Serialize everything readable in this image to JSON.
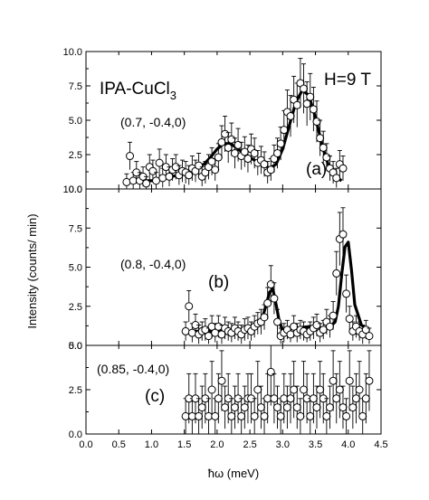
{
  "chart_data": {
    "type": "scatter",
    "xlabel": "ħω (meV)",
    "ylabel": "Intensity (counts/ min)",
    "xlim": [
      0.0,
      4.5
    ],
    "xticks": [
      "0.0",
      "0.5",
      "1.0",
      "1.5",
      "2.0",
      "2.5",
      "3.0",
      "3.5",
      "4.0",
      "4.5"
    ],
    "annotations": {
      "sample": "IPA-CuCl",
      "sample_sub": "3",
      "field": "H=9 T"
    },
    "panels": [
      {
        "label": "(a)",
        "q": "(0.7, -0.4,0)",
        "ylim": [
          0,
          10
        ],
        "yticks": [
          "0.0",
          "2.5",
          "5.0",
          "7.5",
          "10.0"
        ],
        "x": [
          0.62,
          0.67,
          0.72,
          0.77,
          0.82,
          0.87,
          0.92,
          0.97,
          1.02,
          1.07,
          1.12,
          1.17,
          1.22,
          1.27,
          1.32,
          1.37,
          1.42,
          1.47,
          1.52,
          1.57,
          1.62,
          1.67,
          1.72,
          1.77,
          1.82,
          1.87,
          1.92,
          1.97,
          2.02,
          2.07,
          2.12,
          2.17,
          2.22,
          2.27,
          2.32,
          2.37,
          2.42,
          2.47,
          2.52,
          2.57,
          2.62,
          2.67,
          2.72,
          2.77,
          2.82,
          2.87,
          2.92,
          2.97,
          3.02,
          3.07,
          3.12,
          3.17,
          3.22,
          3.27,
          3.32,
          3.37,
          3.42,
          3.47,
          3.52,
          3.57,
          3.62,
          3.67,
          3.72,
          3.77,
          3.82,
          3.87,
          3.92
        ],
        "y": [
          0.5,
          2.4,
          0.6,
          1.2,
          0.6,
          0.9,
          0.4,
          1.6,
          1.3,
          0.6,
          1.9,
          0.8,
          1.6,
          0.9,
          1.4,
          1.6,
          1.0,
          1.3,
          1.2,
          1.0,
          1.5,
          1.3,
          1.7,
          0.9,
          1.2,
          1.6,
          2.0,
          1.4,
          2.3,
          3.4,
          4.0,
          3.0,
          3.6,
          2.6,
          3.2,
          2.4,
          2.7,
          2.2,
          2.9,
          2.6,
          1.9,
          2.1,
          1.8,
          1.2,
          1.4,
          2.2,
          2.6,
          3.3,
          4.3,
          5.6,
          5.3,
          6.5,
          6.1,
          7.7,
          7.3,
          6.2,
          6.7,
          5.8,
          4.9,
          3.7,
          3.0,
          2.3,
          1.5,
          1.2,
          0.8,
          1.8,
          1.5
        ],
        "err": [
          0.6,
          1.0,
          0.6,
          0.8,
          0.6,
          0.7,
          0.5,
          0.9,
          0.8,
          0.6,
          1.0,
          0.7,
          0.9,
          0.7,
          0.8,
          0.9,
          0.7,
          0.8,
          0.8,
          0.7,
          0.9,
          0.8,
          0.9,
          0.7,
          0.8,
          0.9,
          1.0,
          0.8,
          1.0,
          1.2,
          1.3,
          1.1,
          1.2,
          1.1,
          1.2,
          1.0,
          1.1,
          1.0,
          1.1,
          1.1,
          0.9,
          1.0,
          0.9,
          0.8,
          0.8,
          1.0,
          1.1,
          1.2,
          1.4,
          1.6,
          1.5,
          1.7,
          1.6,
          1.8,
          1.8,
          1.6,
          1.7,
          1.6,
          1.5,
          1.3,
          1.2,
          1.0,
          0.9,
          0.8,
          0.7,
          1.0,
          0.9
        ],
        "fit_x": [
          0.8,
          1.0,
          1.2,
          1.4,
          1.6,
          1.8,
          1.9,
          2.0,
          2.1,
          2.2,
          2.3,
          2.4,
          2.5,
          2.6,
          2.7,
          2.8,
          2.9,
          3.0,
          3.1,
          3.2,
          3.3,
          3.4,
          3.5,
          3.6,
          3.7,
          3.8,
          3.9
        ],
        "fit_y": [
          0.6,
          0.6,
          0.8,
          1.0,
          1.3,
          1.8,
          2.3,
          2.9,
          3.3,
          3.3,
          3.0,
          2.6,
          2.3,
          2.0,
          1.8,
          1.5,
          1.8,
          2.9,
          4.6,
          6.3,
          7.2,
          6.8,
          5.2,
          3.2,
          1.7,
          0.9,
          0.6
        ]
      },
      {
        "label": "(b)",
        "q": "(0.8, -0.4,0)",
        "ylim": [
          0,
          10
        ],
        "yticks": [
          "0.0",
          "2.5",
          "5.0",
          "7.5",
          "10.0"
        ],
        "x": [
          1.52,
          1.57,
          1.62,
          1.67,
          1.72,
          1.77,
          1.82,
          1.87,
          1.92,
          1.97,
          2.02,
          2.07,
          2.12,
          2.17,
          2.22,
          2.27,
          2.32,
          2.37,
          2.42,
          2.47,
          2.52,
          2.57,
          2.62,
          2.67,
          2.72,
          2.77,
          2.82,
          2.87,
          2.92,
          2.97,
          3.02,
          3.07,
          3.12,
          3.17,
          3.22,
          3.27,
          3.32,
          3.37,
          3.42,
          3.47,
          3.52,
          3.57,
          3.62,
          3.67,
          3.72,
          3.77,
          3.82,
          3.87,
          3.92,
          3.97,
          4.02,
          4.07,
          4.12,
          4.17,
          4.22,
          4.27,
          4.32
        ],
        "y": [
          0.9,
          2.5,
          0.8,
          1.3,
          0.7,
          0.9,
          1.0,
          0.6,
          1.2,
          0.8,
          1.2,
          0.7,
          1.1,
          0.9,
          0.8,
          1.1,
          0.9,
          0.7,
          1.0,
          1.1,
          0.9,
          1.2,
          1.4,
          1.5,
          1.8,
          2.7,
          3.9,
          3.0,
          1.5,
          0.6,
          0.8,
          1.0,
          0.7,
          1.2,
          0.8,
          1.0,
          0.9,
          0.7,
          0.9,
          1.1,
          1.3,
          0.8,
          1.0,
          1.5,
          1.2,
          1.9,
          4.6,
          6.8,
          7.1,
          3.3,
          1.7,
          0.9,
          1.2,
          0.9,
          0.7,
          1.0,
          0.6
        ],
        "err": [
          0.6,
          1.0,
          0.6,
          0.7,
          0.6,
          0.6,
          0.7,
          0.5,
          0.7,
          0.6,
          0.7,
          0.6,
          0.7,
          0.6,
          0.6,
          0.7,
          0.6,
          0.6,
          0.7,
          0.7,
          0.6,
          0.7,
          0.7,
          0.8,
          0.8,
          1.0,
          1.2,
          1.0,
          0.8,
          0.5,
          0.6,
          0.6,
          0.5,
          0.7,
          0.6,
          0.6,
          0.6,
          0.5,
          0.6,
          0.7,
          0.7,
          0.6,
          0.6,
          0.8,
          0.7,
          0.9,
          1.4,
          1.7,
          1.7,
          1.2,
          0.8,
          0.6,
          0.7,
          0.6,
          0.6,
          0.6,
          0.5
        ],
        "fit_x": [
          1.5,
          1.7,
          1.9,
          2.1,
          2.3,
          2.5,
          2.6,
          2.7,
          2.75,
          2.8,
          2.85,
          2.9,
          2.95,
          3.0,
          3.2,
          3.4,
          3.5,
          3.6,
          3.7,
          3.8,
          3.85,
          3.9,
          3.95,
          4.0,
          4.05,
          4.1,
          4.2,
          4.3
        ],
        "fit_y": [
          0.8,
          0.9,
          0.9,
          1.0,
          1.0,
          1.0,
          1.3,
          1.9,
          2.6,
          3.4,
          3.6,
          2.6,
          1.5,
          1.0,
          1.1,
          1.2,
          1.2,
          1.1,
          1.1,
          1.5,
          2.5,
          4.5,
          6.3,
          6.6,
          4.8,
          2.6,
          1.3,
          1.0
        ]
      },
      {
        "label": "(c)",
        "q": "(0.85, -0.4,0)",
        "ylim": [
          0,
          5
        ],
        "yticks": [
          "0.0",
          "2.5",
          "5.0"
        ],
        "x": [
          1.52,
          1.57,
          1.62,
          1.67,
          1.72,
          1.77,
          1.82,
          1.87,
          1.92,
          1.97,
          2.02,
          2.07,
          2.12,
          2.17,
          2.22,
          2.27,
          2.32,
          2.37,
          2.42,
          2.47,
          2.52,
          2.57,
          2.62,
          2.67,
          2.72,
          2.77,
          2.82,
          2.87,
          2.92,
          2.97,
          3.02,
          3.07,
          3.12,
          3.17,
          3.22,
          3.27,
          3.32,
          3.37,
          3.42,
          3.47,
          3.52,
          3.57,
          3.62,
          3.67,
          3.72,
          3.77,
          3.82,
          3.87,
          3.92,
          3.97,
          4.02,
          4.07,
          4.12,
          4.17,
          4.22,
          4.27,
          4.32
        ],
        "y": [
          1.0,
          2.0,
          1.0,
          2.0,
          1.0,
          1.5,
          2.0,
          1.0,
          2.5,
          1.0,
          2.0,
          3.0,
          1.5,
          2.0,
          1.0,
          1.5,
          2.0,
          1.0,
          1.5,
          2.0,
          2.0,
          1.0,
          2.5,
          1.5,
          1.0,
          2.0,
          3.5,
          2.0,
          1.5,
          1.0,
          2.0,
          1.5,
          2.0,
          2.5,
          1.5,
          1.0,
          2.5,
          2.0,
          1.0,
          2.0,
          1.5,
          2.5,
          2.0,
          1.0,
          1.5,
          3.0,
          2.0,
          2.5,
          1.5,
          1.0,
          3.0,
          1.5,
          2.0,
          2.5,
          1.0,
          2.0,
          3.0
        ],
        "err": [
          1.0,
          1.4,
          1.0,
          1.4,
          1.0,
          1.2,
          1.4,
          1.0,
          1.6,
          1.0,
          1.4,
          1.7,
          1.2,
          1.4,
          1.0,
          1.2,
          1.4,
          1.0,
          1.2,
          1.4,
          1.4,
          1.0,
          1.6,
          1.2,
          1.0,
          1.4,
          1.9,
          1.4,
          1.2,
          1.0,
          1.4,
          1.2,
          1.4,
          1.6,
          1.2,
          1.0,
          1.6,
          1.4,
          1.0,
          1.4,
          1.2,
          1.6,
          1.4,
          1.0,
          1.2,
          1.7,
          1.4,
          1.6,
          1.2,
          1.0,
          1.7,
          1.2,
          1.4,
          1.6,
          1.0,
          1.4,
          1.7
        ]
      }
    ]
  }
}
